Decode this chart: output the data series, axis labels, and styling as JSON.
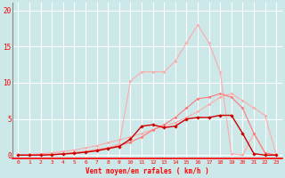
{
  "x": [
    0,
    1,
    2,
    3,
    4,
    5,
    6,
    7,
    8,
    9,
    10,
    11,
    12,
    13,
    14,
    15,
    16,
    17,
    18,
    19,
    20,
    21,
    22,
    23
  ],
  "line_gust_peak": [
    0.0,
    0.0,
    0.05,
    0.1,
    0.2,
    0.3,
    0.5,
    0.8,
    1.0,
    1.5,
    10.2,
    11.5,
    11.5,
    11.5,
    13.0,
    15.5,
    18.0,
    15.5,
    11.5,
    0.2,
    0.0,
    3.0,
    0.3,
    0.0
  ],
  "line_diagonal": [
    0.0,
    0.1,
    0.2,
    0.3,
    0.5,
    0.7,
    1.0,
    1.3,
    1.7,
    2.1,
    2.5,
    3.0,
    3.5,
    4.0,
    4.5,
    5.2,
    6.0,
    7.0,
    8.0,
    8.5,
    7.5,
    6.5,
    5.5,
    0.0
  ],
  "line_medium": [
    0.0,
    0.0,
    0.05,
    0.1,
    0.2,
    0.35,
    0.5,
    0.7,
    1.0,
    1.3,
    1.8,
    2.5,
    3.5,
    4.2,
    5.2,
    6.5,
    7.8,
    8.0,
    8.5,
    8.0,
    6.5,
    3.0,
    0.3,
    0.0
  ],
  "line_dark": [
    0.0,
    0.0,
    0.0,
    0.05,
    0.15,
    0.25,
    0.4,
    0.6,
    0.9,
    1.2,
    2.2,
    4.0,
    4.2,
    3.8,
    4.0,
    5.0,
    5.2,
    5.2,
    5.5,
    5.5,
    3.0,
    0.2,
    0.0,
    0.0
  ],
  "color_dark": "#cc0000",
  "color_light": "#ffaaaa",
  "color_medium": "#ff7777",
  "bg_color": "#cce8e8",
  "grid_color": "#ffffff",
  "xlabel": "Vent moyen/en rafales ( km/h )",
  "xlim": [
    -0.5,
    23.5
  ],
  "ylim": [
    -0.5,
    21
  ],
  "yticks": [
    0,
    5,
    10,
    15,
    20
  ],
  "xticks": [
    0,
    1,
    2,
    3,
    4,
    5,
    6,
    7,
    8,
    9,
    10,
    11,
    12,
    13,
    14,
    15,
    16,
    17,
    18,
    19,
    20,
    21,
    22,
    23
  ]
}
